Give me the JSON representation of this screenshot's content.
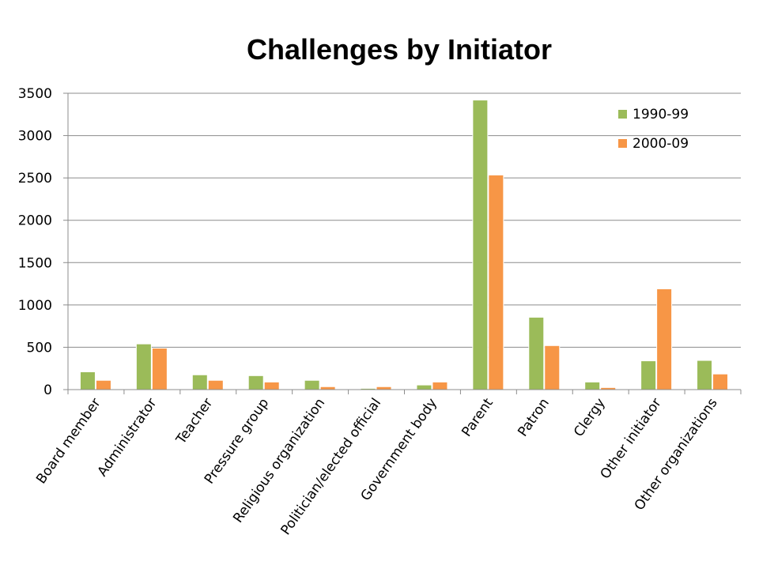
{
  "chart_data": {
    "type": "bar",
    "title": "Challenges by Initiator",
    "xlabel": "",
    "ylabel": "",
    "ylim": [
      0,
      3500
    ],
    "yticks": [
      0,
      500,
      1000,
      1500,
      2000,
      2500,
      3000,
      3500
    ],
    "grid": true,
    "legend_position": "top-right",
    "categories": [
      "Board member",
      "Administrator",
      "Teacher",
      "Pressure group",
      "Religious organization",
      "Politician/elected official",
      "Government body",
      "Parent",
      "Patron",
      "Clergy",
      "Other initiator",
      "Other organizations"
    ],
    "series": [
      {
        "name": "1990-99",
        "color": "#9bbb59",
        "values": [
          210,
          540,
          175,
          165,
          110,
          15,
          55,
          3420,
          855,
          90,
          340,
          345
        ]
      },
      {
        "name": "2000-09",
        "color": "#f79646",
        "values": [
          110,
          490,
          110,
          90,
          35,
          35,
          90,
          2535,
          520,
          25,
          1190,
          185
        ]
      }
    ]
  }
}
